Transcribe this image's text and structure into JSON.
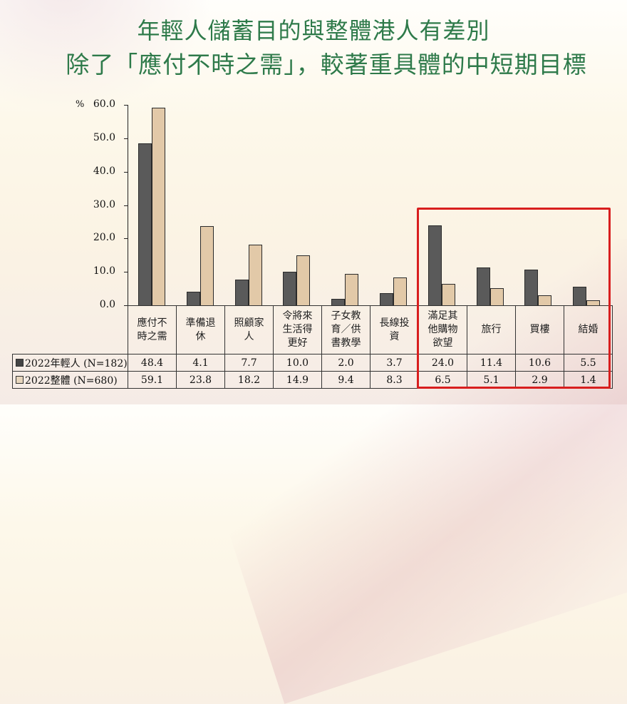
{
  "title": {
    "line1": "年輕人儲蓄目的與整體港人有差別",
    "line2": "除了「應付不時之需」，較著重具體的中短期目標"
  },
  "chart_data": {
    "type": "bar",
    "title": "年輕人儲蓄目的與整體港人有差別 除了「應付不時之需」，較著重具體的中短期目標",
    "xlabel": "",
    "ylabel": "%",
    "ylim": [
      0,
      60
    ],
    "yticks": [
      "60.0",
      "50.0",
      "40.0",
      "30.0",
      "20.0",
      "10.0",
      "0.0"
    ],
    "grid": false,
    "legend_position": "data-table-left",
    "categories": [
      "應付不時之需",
      "準備退休",
      "照顧家人",
      "令將來生活得更好",
      "子女教育／供書教學",
      "長線投資",
      "滿足其他購物欲望",
      "旅行",
      "買樓",
      "結婚"
    ],
    "category_display": [
      [
        "應付不",
        "時之需"
      ],
      [
        "準備退",
        "休"
      ],
      [
        "照顧家",
        "人"
      ],
      [
        "令將來",
        "生活得",
        "更好"
      ],
      [
        "子女教",
        "育／供",
        "書教學"
      ],
      [
        "長線投",
        "資"
      ],
      [
        "滿足其",
        "他購物",
        "欲望"
      ],
      [
        "旅行"
      ],
      [
        "買樓"
      ],
      [
        "結婚"
      ]
    ],
    "series": [
      {
        "name": "2022年輕人 (N=182)",
        "color": "#5a5a5a",
        "values": [
          48.4,
          4.1,
          7.7,
          10.0,
          2.0,
          3.7,
          24.0,
          11.4,
          10.6,
          5.5
        ],
        "labels": [
          "48.4",
          "4.1",
          "7.7",
          "10.0",
          "2.0",
          "3.7",
          "24.0",
          "11.4",
          "10.6",
          "5.5"
        ]
      },
      {
        "name": "2022整體 (N=680)",
        "color": "#e2c9a8",
        "values": [
          59.1,
          23.8,
          18.2,
          14.9,
          9.4,
          8.3,
          6.5,
          5.1,
          2.9,
          1.4
        ],
        "labels": [
          "59.1",
          "23.8",
          "18.2",
          "14.9",
          "9.4",
          "8.3",
          "6.5",
          "5.1",
          "2.9",
          "1.4"
        ]
      }
    ],
    "annotations": [
      {
        "type": "highlight-box",
        "color": "#d81e1e",
        "categories": [
          "滿足其他購物欲望",
          "旅行",
          "買樓",
          "結婚"
        ]
      }
    ]
  },
  "colors": {
    "title": "#2e7a4a",
    "highlight": "#d81e1e"
  }
}
